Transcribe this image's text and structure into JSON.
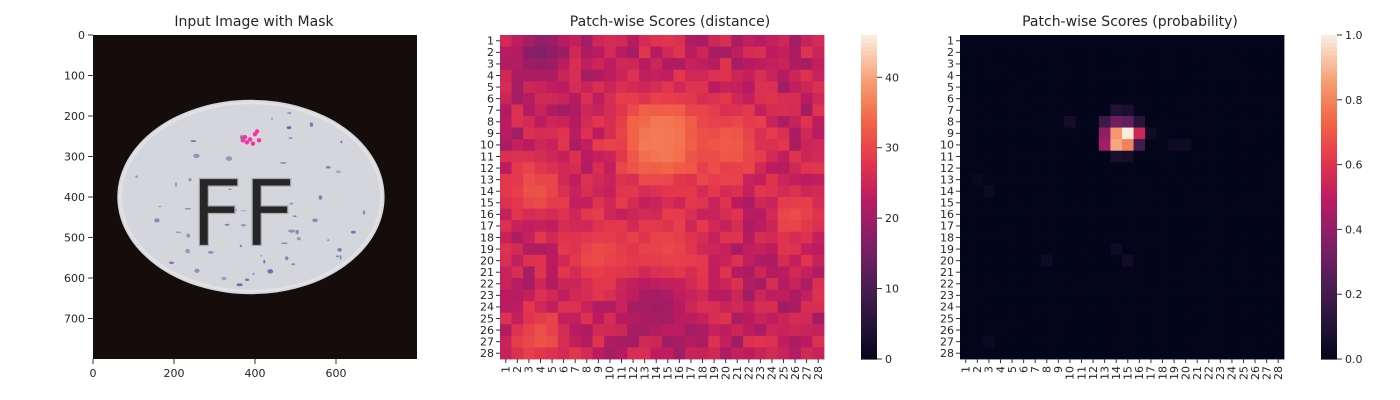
{
  "chart_data": [
    {
      "type": "image",
      "title": "Input Image with Mask",
      "xticks": [
        0,
        200,
        400,
        600
      ],
      "yticks": [
        0,
        100,
        200,
        300,
        400,
        500,
        600,
        700
      ],
      "xlim": [
        0,
        800
      ],
      "ylim": [
        800,
        0
      ],
      "image": {
        "background": "#140d0c",
        "pill": {
          "cx": 390,
          "cy": 400,
          "rx": 330,
          "ry": 240,
          "fill": "#d4d6db"
        },
        "embossed_text": "FF",
        "mask_points": [
          [
            375,
            252
          ],
          [
            388,
            258
          ],
          [
            400,
            245
          ],
          [
            410,
            260
          ],
          [
            395,
            268
          ],
          [
            380,
            265
          ],
          [
            405,
            238
          ],
          [
            370,
            260
          ]
        ],
        "mask_color": "#ff2fa0",
        "speck_color": "#5a55a0"
      }
    },
    {
      "type": "heatmap",
      "title": "Patch-wise Scores (distance)",
      "rows": 28,
      "cols": 28,
      "tick_labels": [
        "1",
        "2",
        "3",
        "4",
        "5",
        "6",
        "7",
        "8",
        "9",
        "10",
        "11",
        "12",
        "13",
        "14",
        "15",
        "16",
        "17",
        "18",
        "19",
        "20",
        "21",
        "22",
        "23",
        "24",
        "25",
        "26",
        "27",
        "28"
      ],
      "colormap": "rocket",
      "vmin": 0,
      "vmax": 46,
      "colorbar_ticks": [
        0,
        10,
        20,
        30,
        40
      ],
      "base_value": 24,
      "hotspots": [
        {
          "row": 9.5,
          "col": 14.5,
          "value": 46,
          "sigma": 1.4
        },
        {
          "row": 9.5,
          "col": 14.5,
          "value": 36,
          "sigma": 3.0
        },
        {
          "row": 10,
          "col": 20.5,
          "value": 33,
          "sigma": 2.2
        },
        {
          "row": 14,
          "col": 3.5,
          "value": 32,
          "sigma": 1.8
        },
        {
          "row": 19.5,
          "col": 9,
          "value": 31,
          "sigma": 2.2
        },
        {
          "row": 19.5,
          "col": 15,
          "value": 31,
          "sigma": 2.5
        },
        {
          "row": 16,
          "col": 26,
          "value": 31,
          "sigma": 1.6
        },
        {
          "row": 26.5,
          "col": 4,
          "value": 32,
          "sigma": 1.6
        },
        {
          "row": 2,
          "col": 4,
          "value": 17,
          "sigma": 1.5
        },
        {
          "row": 24,
          "col": 14,
          "value": 20,
          "sigma": 2.0
        }
      ]
    },
    {
      "type": "heatmap",
      "title": "Patch-wise Scores (probability)",
      "rows": 28,
      "cols": 28,
      "tick_labels": [
        "1",
        "2",
        "3",
        "4",
        "5",
        "6",
        "7",
        "8",
        "9",
        "10",
        "11",
        "12",
        "13",
        "14",
        "15",
        "16",
        "17",
        "18",
        "19",
        "20",
        "21",
        "22",
        "23",
        "24",
        "25",
        "26",
        "27",
        "28"
      ],
      "colormap": "rocket",
      "vmin": 0.0,
      "vmax": 1.0,
      "colorbar_ticks": [
        "0.0",
        "0.2",
        "0.4",
        "0.6",
        "0.8",
        "1.0"
      ],
      "cells": [
        {
          "row": 8,
          "col": 13,
          "value": 0.18
        },
        {
          "row": 8,
          "col": 14,
          "value": 0.32
        },
        {
          "row": 8,
          "col": 15,
          "value": 0.28
        },
        {
          "row": 8,
          "col": 16,
          "value": 0.12
        },
        {
          "row": 9,
          "col": 13,
          "value": 0.4
        },
        {
          "row": 9,
          "col": 14,
          "value": 0.85
        },
        {
          "row": 9,
          "col": 15,
          "value": 1.0
        },
        {
          "row": 9,
          "col": 16,
          "value": 0.55
        },
        {
          "row": 10,
          "col": 13,
          "value": 0.45
        },
        {
          "row": 10,
          "col": 14,
          "value": 0.88
        },
        {
          "row": 10,
          "col": 15,
          "value": 0.8
        },
        {
          "row": 10,
          "col": 16,
          "value": 0.2
        },
        {
          "row": 7,
          "col": 14,
          "value": 0.1
        },
        {
          "row": 7,
          "col": 15,
          "value": 0.08
        },
        {
          "row": 11,
          "col": 14,
          "value": 0.08
        },
        {
          "row": 11,
          "col": 15,
          "value": 0.06
        },
        {
          "row": 8,
          "col": 10,
          "value": 0.06
        },
        {
          "row": 9,
          "col": 17,
          "value": 0.05
        },
        {
          "row": 10,
          "col": 19,
          "value": 0.04
        },
        {
          "row": 10,
          "col": 20,
          "value": 0.04
        },
        {
          "row": 20,
          "col": 15,
          "value": 0.05
        },
        {
          "row": 20,
          "col": 8,
          "value": 0.04
        },
        {
          "row": 19,
          "col": 14,
          "value": 0.04
        },
        {
          "row": 14,
          "col": 3,
          "value": 0.03
        },
        {
          "row": 27,
          "col": 3,
          "value": 0.03
        },
        {
          "row": 13,
          "col": 2,
          "value": 0.02
        }
      ]
    }
  ]
}
